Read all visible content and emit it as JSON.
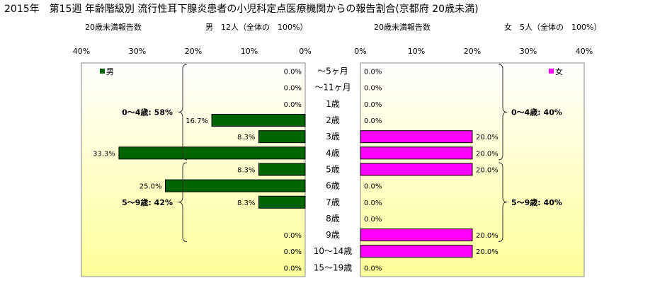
{
  "title": "2015年　第15週 年齢階級別 流行性耳下腺炎患者の小児科定点医療機関からの報告割合(京都府 20歳未満)",
  "left_header": {
    "caption": "20歳未満報告数",
    "summary": "男　12人（全体の　100%）"
  },
  "right_header": {
    "caption": "20歳未満報告数",
    "summary": "女　5人（全体の　100%）"
  },
  "colors": {
    "male": "#006400",
    "female": "#ff00ff",
    "background_top": "#ffffff",
    "background_bottom": "#ffff99"
  },
  "chart_data": {
    "type": "bar",
    "orientation": "horizontal-butterfly",
    "categories": [
      "〜5ヶ月",
      "〜11ヶ月",
      "1歳",
      "2歳",
      "3歳",
      "4歳",
      "5歳",
      "6歳",
      "7歳",
      "8歳",
      "9歳",
      "10〜14歳",
      "15〜19歳"
    ],
    "x_ticks": [
      "40%",
      "30%",
      "20%",
      "10%",
      "0%"
    ],
    "x_ticks_right": [
      "0%",
      "10%",
      "20%",
      "30%",
      "40%"
    ],
    "xlim": [
      0,
      40
    ],
    "series": [
      {
        "name": "男",
        "side": "left",
        "values": [
          0.0,
          0.0,
          0.0,
          16.7,
          8.3,
          33.3,
          8.3,
          25.0,
          8.3,
          0.0,
          0.0,
          0.0,
          0.0
        ],
        "labels": [
          "0.0%",
          "0.0%",
          "0.0%",
          "16.7%",
          "8.3%",
          "33.3%",
          "8.3%",
          "25.0%",
          "8.3%",
          "",
          "0.0%",
          "0.0%",
          "0.0%"
        ]
      },
      {
        "name": "女",
        "side": "right",
        "values": [
          0.0,
          0.0,
          0.0,
          0.0,
          20.0,
          20.0,
          20.0,
          0.0,
          0.0,
          0.0,
          20.0,
          20.0,
          0.0
        ],
        "labels": [
          "0.0%",
          "0.0%",
          "0.0%",
          "0.0%",
          "20.0%",
          "20.0%",
          "20.0%",
          "0.0%",
          "0.0%",
          "0.0%",
          "20.0%",
          "20.0%",
          "0.0%"
        ]
      }
    ],
    "annotations": {
      "male": [
        {
          "label": "0〜4歳: 58%",
          "from": 0,
          "to": 5
        },
        {
          "label": "5〜9歳: 42%",
          "from": 6,
          "to": 10
        }
      ],
      "female": [
        {
          "label": "0〜4歳: 40%",
          "from": 0,
          "to": 5
        },
        {
          "label": "5〜9歳: 40%",
          "from": 6,
          "to": 10
        }
      ]
    }
  }
}
